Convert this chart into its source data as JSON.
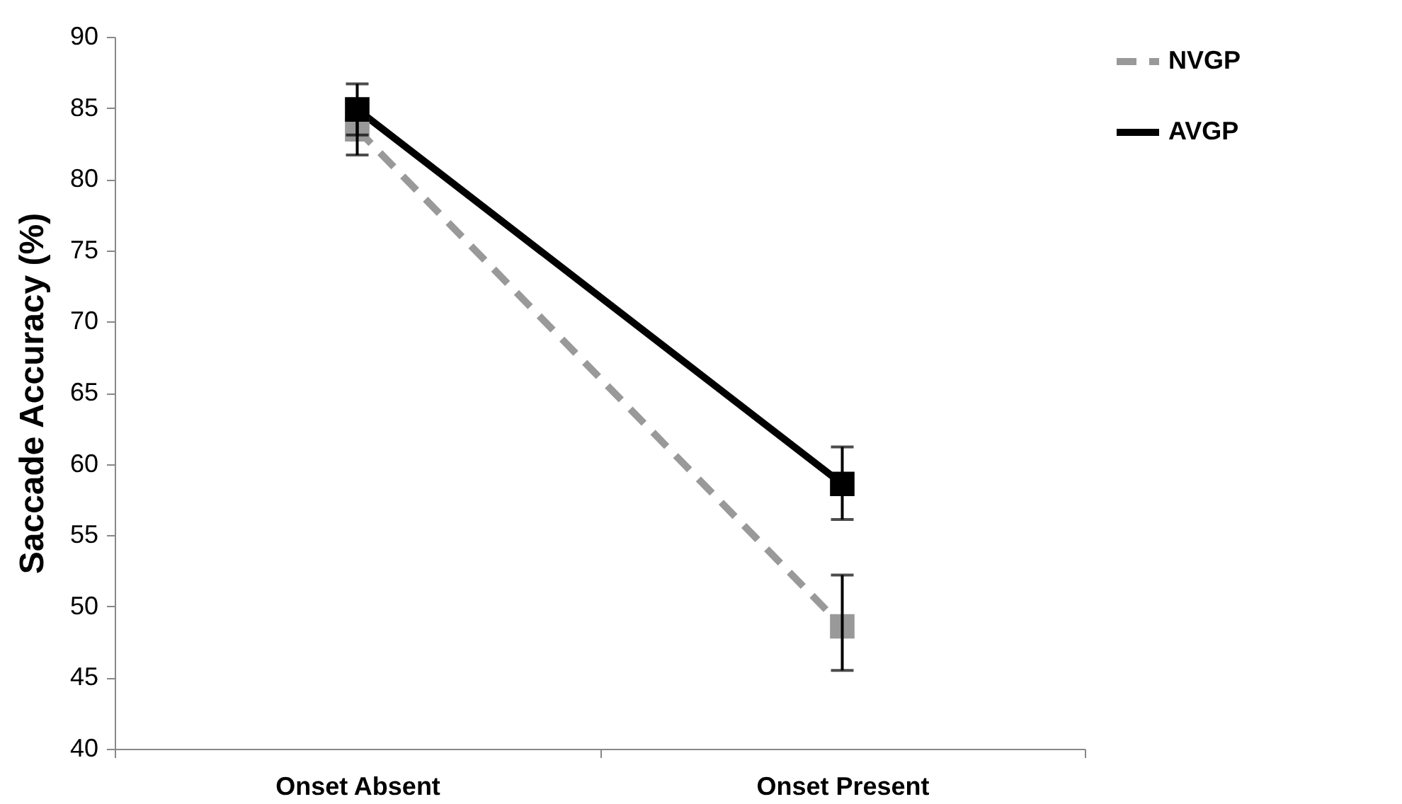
{
  "chart_data": {
    "type": "line",
    "ylabel": "Saccade Accuracy (%)",
    "categories": [
      "Onset Absent",
      "Onset Present"
    ],
    "series": [
      {
        "name": "NVGP",
        "color": "#999999",
        "values": [
          83.5,
          48.6
        ],
        "errors": [
          1.8,
          [
            45.5,
            52.2
          ]
        ],
        "line_style": "dashed"
      },
      {
        "name": "AVGP",
        "color": "#000000",
        "values": [
          84.9,
          58.6
        ],
        "errors": [
          1.8,
          [
            56.1,
            61.2
          ]
        ],
        "line_style": "solid"
      }
    ],
    "ylim": [
      40,
      90
    ],
    "yticks": [
      40,
      45,
      50,
      55,
      60,
      65,
      70,
      75,
      80,
      85,
      90
    ],
    "marker": "square",
    "legend": "right",
    "grid": false
  }
}
